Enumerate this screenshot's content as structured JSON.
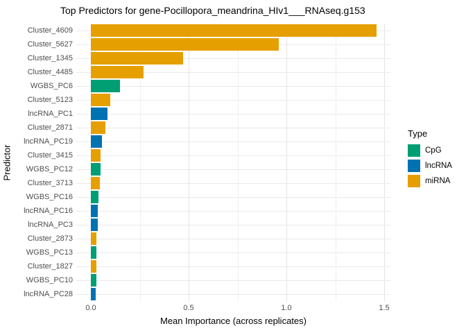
{
  "chart_data": {
    "type": "bar",
    "orientation": "horizontal",
    "title": "Top Predictors for gene-Pocillopora_meandrina_HIv1___RNAseq.g153",
    "xlabel": "Mean Importance (across replicates)",
    "ylabel": "Predictor",
    "xlim": [
      0,
      1.5
    ],
    "x_major_ticks": [
      0.0,
      0.5,
      1.0,
      1.5
    ],
    "x_major_tick_labels": [
      "0.0",
      "0.5",
      "1.0",
      "1.5"
    ],
    "x_minor_ticks": [
      0.25,
      0.75,
      1.25
    ],
    "grid": true,
    "background": "#ffffff",
    "legend": {
      "title": "Type",
      "position": "right",
      "entries": [
        {
          "label": "CpG",
          "color": "#009E73"
        },
        {
          "label": "lncRNA",
          "color": "#0072B2"
        },
        {
          "label": "miRNA",
          "color": "#E69F00"
        }
      ]
    },
    "bars": [
      {
        "label": "Cluster_4609",
        "type": "miRNA",
        "value": 1.46
      },
      {
        "label": "Cluster_5627",
        "type": "miRNA",
        "value": 0.96
      },
      {
        "label": "Cluster_1345",
        "type": "miRNA",
        "value": 0.47
      },
      {
        "label": "Cluster_4485",
        "type": "miRNA",
        "value": 0.27
      },
      {
        "label": "WGBS_PC6",
        "type": "CpG",
        "value": 0.15
      },
      {
        "label": "Cluster_5123",
        "type": "miRNA",
        "value": 0.1
      },
      {
        "label": "lncRNA_PC1",
        "type": "lncRNA",
        "value": 0.085
      },
      {
        "label": "Cluster_2871",
        "type": "miRNA",
        "value": 0.075
      },
      {
        "label": "lncRNA_PC19",
        "type": "lncRNA",
        "value": 0.056
      },
      {
        "label": "Cluster_3415",
        "type": "miRNA",
        "value": 0.05
      },
      {
        "label": "WGBS_PC12",
        "type": "CpG",
        "value": 0.048
      },
      {
        "label": "Cluster_3713",
        "type": "miRNA",
        "value": 0.046
      },
      {
        "label": "WGBS_PC16",
        "type": "CpG",
        "value": 0.04
      },
      {
        "label": "lncRNA_PC16",
        "type": "lncRNA",
        "value": 0.036
      },
      {
        "label": "lncRNA_PC3",
        "type": "lncRNA",
        "value": 0.035
      },
      {
        "label": "Cluster_2873",
        "type": "miRNA",
        "value": 0.03
      },
      {
        "label": "WGBS_PC13",
        "type": "CpG",
        "value": 0.029
      },
      {
        "label": "Cluster_1827",
        "type": "miRNA",
        "value": 0.028
      },
      {
        "label": "WGBS_PC10",
        "type": "CpG",
        "value": 0.027
      },
      {
        "label": "lncRNA_PC28",
        "type": "lncRNA",
        "value": 0.026
      }
    ]
  }
}
